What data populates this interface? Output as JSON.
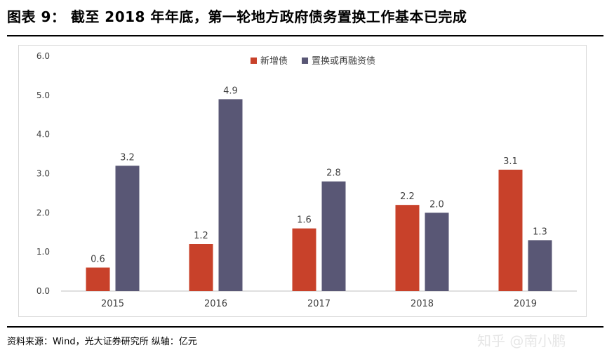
{
  "figure": {
    "title": "图表 9： 截至 2018 年年底，第一轮地方政府债务置换工作基本已完成",
    "source": "资料来源：Wind，光大证券研究所 纵轴：亿元",
    "watermark": "知乎 @南小鹏"
  },
  "chart_data": {
    "type": "bar",
    "categories": [
      "2015",
      "2016",
      "2017",
      "2018",
      "2019"
    ],
    "series": [
      {
        "name": "新增债",
        "color": "#C8412A",
        "values": [
          0.6,
          1.2,
          1.6,
          2.2,
          3.1
        ]
      },
      {
        "name": "置换或再融资债",
        "color": "#595775",
        "values": [
          3.2,
          4.9,
          2.8,
          2.0,
          1.3
        ]
      }
    ],
    "yticks": [
      "0.0",
      "1.0",
      "2.0",
      "3.0",
      "4.0",
      "5.0",
      "6.0"
    ],
    "ylim": [
      0,
      6
    ],
    "grid": false,
    "legend_position": "top-center",
    "title": "",
    "xlabel": "",
    "ylabel": ""
  }
}
